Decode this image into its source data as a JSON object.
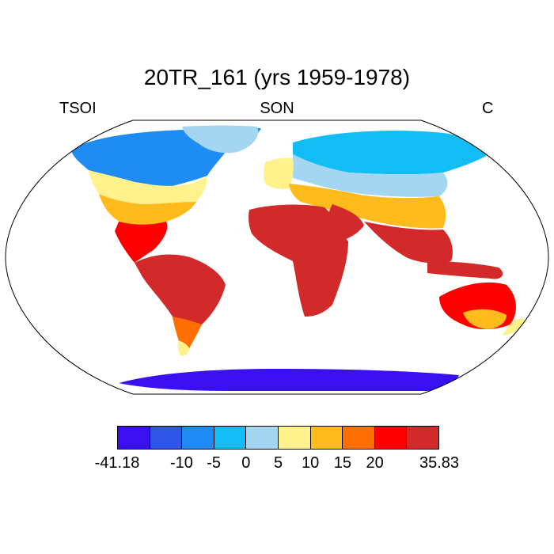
{
  "title": "20TR_161 (yrs 1959-1978)",
  "left_label": "TSOI",
  "center_label": "SON",
  "right_label": "C",
  "colorbar": {
    "colors": [
      "#3a10f0",
      "#2f55e8",
      "#1e8cf2",
      "#12bdf5",
      "#a4d6f2",
      "#fff28c",
      "#ffba1c",
      "#ff6f00",
      "#ff0000",
      "#d22a2a"
    ],
    "labels": [
      "-41.18",
      "-10",
      "-5",
      "0",
      "5",
      "10",
      "15",
      "20",
      "35.83"
    ],
    "label_boundaries": [
      0,
      2,
      3,
      4,
      5,
      6,
      7,
      8,
      10
    ]
  },
  "regions": [
    {
      "name": "north-america",
      "color": "#1e8cf2"
    },
    {
      "name": "south-america",
      "color": "#d22a2a"
    },
    {
      "name": "africa",
      "color": "#d22a2a"
    },
    {
      "name": "eurasia",
      "color": "#12bdf5"
    },
    {
      "name": "australia",
      "color": "#ff0000"
    },
    {
      "name": "antarctica",
      "color": "#3a10f0"
    }
  ]
}
